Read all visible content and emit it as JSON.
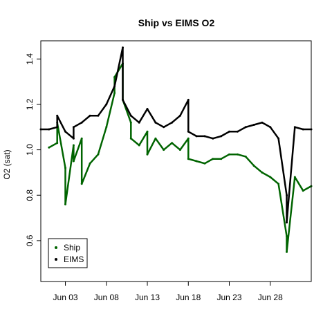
{
  "chart_data": {
    "type": "scatter",
    "title": "Ship vs EIMS O2",
    "xlabel": "",
    "ylabel": "O2 (sat)",
    "xlim": [
      "2013-05-31",
      "2013-07-03"
    ],
    "ylim": [
      0.42,
      1.48
    ],
    "x_tick_labels": [
      "Jun 03",
      "Jun 08",
      "Jun 13",
      "Jun 18",
      "Jun 23",
      "Jun 28"
    ],
    "x_tick_dates": [
      "2013-06-03",
      "2013-06-08",
      "2013-06-13",
      "2013-06-18",
      "2013-06-23",
      "2013-06-28"
    ],
    "y_ticks": [
      0.6,
      0.8,
      1.0,
      1.2,
      1.4
    ],
    "y_tick_labels": [
      "0.6",
      "0.8",
      "1.0",
      "1.2",
      "1.4"
    ],
    "legend": {
      "position": "bottom-left",
      "entries": [
        "Ship",
        "EIMS"
      ]
    },
    "series": [
      {
        "name": "Ship",
        "color": "#006400",
        "x": [
          "2013-06-01",
          "2013-06-02",
          "2013-06-02",
          "2013-06-03",
          "2013-06-03",
          "2013-06-04",
          "2013-06-04",
          "2013-06-05",
          "2013-06-05",
          "2013-06-06",
          "2013-06-07",
          "2013-06-08",
          "2013-06-09",
          "2013-06-09",
          "2013-06-10",
          "2013-06-10",
          "2013-06-11",
          "2013-06-11",
          "2013-06-12",
          "2013-06-13",
          "2013-06-13",
          "2013-06-14",
          "2013-06-15",
          "2013-06-16",
          "2013-06-17",
          "2013-06-18",
          "2013-06-18",
          "2013-06-19",
          "2013-06-20",
          "2013-06-21",
          "2013-06-22",
          "2013-06-23",
          "2013-06-24",
          "2013-06-25",
          "2013-06-26",
          "2013-06-27",
          "2013-06-28",
          "2013-06-29",
          "2013-06-30",
          "2013-06-30",
          "2013-07-01",
          "2013-07-02",
          "2013-07-03"
        ],
        "y": [
          1.01,
          1.03,
          1.12,
          0.92,
          0.76,
          1.02,
          0.95,
          1.05,
          0.85,
          0.94,
          0.98,
          1.1,
          1.25,
          1.32,
          1.38,
          1.22,
          1.12,
          1.05,
          1.02,
          1.08,
          0.98,
          1.05,
          1.0,
          1.03,
          1.0,
          1.05,
          0.96,
          0.95,
          0.94,
          0.96,
          0.96,
          0.98,
          0.98,
          0.97,
          0.93,
          0.9,
          0.88,
          0.85,
          0.62,
          0.55,
          0.88,
          0.82,
          0.84
        ]
      },
      {
        "name": "EIMS",
        "color": "#000000",
        "x": [
          "2013-05-31",
          "2013-06-01",
          "2013-06-02",
          "2013-06-02",
          "2013-06-03",
          "2013-06-04",
          "2013-06-04",
          "2013-06-05",
          "2013-06-06",
          "2013-06-07",
          "2013-06-08",
          "2013-06-09",
          "2013-06-10",
          "2013-06-10",
          "2013-06-11",
          "2013-06-12",
          "2013-06-13",
          "2013-06-14",
          "2013-06-15",
          "2013-06-16",
          "2013-06-17",
          "2013-06-18",
          "2013-06-18",
          "2013-06-19",
          "2013-06-20",
          "2013-06-21",
          "2013-06-22",
          "2013-06-23",
          "2013-06-24",
          "2013-06-25",
          "2013-06-26",
          "2013-06-27",
          "2013-06-28",
          "2013-06-29",
          "2013-06-30",
          "2013-06-30",
          "2013-07-01",
          "2013-07-02",
          "2013-07-03"
        ],
        "y": [
          1.09,
          1.09,
          1.1,
          1.15,
          1.08,
          1.05,
          1.1,
          1.12,
          1.15,
          1.15,
          1.2,
          1.28,
          1.45,
          1.22,
          1.15,
          1.12,
          1.18,
          1.12,
          1.1,
          1.12,
          1.15,
          1.22,
          1.08,
          1.06,
          1.06,
          1.05,
          1.06,
          1.08,
          1.08,
          1.1,
          1.11,
          1.12,
          1.1,
          1.05,
          0.8,
          0.68,
          1.1,
          1.09,
          1.09
        ]
      }
    ]
  }
}
